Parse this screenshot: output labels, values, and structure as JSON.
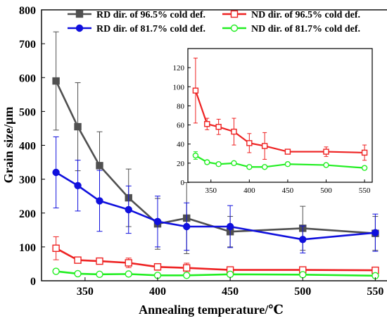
{
  "chart_data": [
    {
      "type": "line",
      "title": "",
      "xlabel": "Annealing temperature/℃",
      "ylabel": "Grain size/μm",
      "xlim": [
        320,
        560
      ],
      "ylim": [
        0,
        800
      ],
      "xticks": [
        350,
        400,
        450,
        500,
        550
      ],
      "yticks": [
        0,
        100,
        200,
        300,
        400,
        500,
        600,
        700,
        800
      ],
      "x": [
        330,
        345,
        360,
        380,
        400,
        420,
        450,
        500,
        550
      ],
      "legend_position": "top",
      "series": [
        {
          "name": "RD dir. of 96.5% cold def.",
          "color": "#505050",
          "marker": "square-filled",
          "values": [
            590,
            455,
            340,
            245,
            168,
            185,
            145,
            155,
            140
          ],
          "errors": [
            145,
            130,
            100,
            85,
            75,
            105,
            45,
            65,
            50
          ]
        },
        {
          "name": "ND dir. of 96.5% cold def.",
          "color": "#ee2222",
          "marker": "square-open",
          "values": [
            96,
            61,
            58,
            53,
            41,
            38,
            32,
            32,
            31
          ],
          "errors": [
            34,
            6,
            8,
            14,
            10,
            14,
            2,
            5,
            8
          ]
        },
        {
          "name": "RD dir. of 81.7% cold def.",
          "color": "#1010dd",
          "marker": "circle-filled",
          "values": [
            320,
            281,
            236,
            210,
            175,
            160,
            160,
            122,
            142
          ],
          "errors": [
            105,
            75,
            90,
            70,
            75,
            70,
            62,
            40,
            55
          ]
        },
        {
          "name": "ND dir. of 81.7% cold def.",
          "color": "#22ee22",
          "marker": "circle-open",
          "values": [
            28,
            21,
            19,
            20,
            16,
            16,
            19,
            18,
            15
          ],
          "errors": [
            4,
            2,
            2,
            2,
            2,
            2,
            2,
            2,
            2
          ]
        }
      ]
    },
    {
      "type": "line",
      "title": "",
      "xlim": [
        320,
        560
      ],
      "ylim": [
        0,
        140
      ],
      "xticks": [
        350,
        400,
        450,
        500,
        550
      ],
      "yticks": [
        0,
        20,
        40,
        60,
        80,
        100,
        120
      ],
      "x": [
        330,
        345,
        360,
        380,
        400,
        420,
        450,
        500,
        550
      ],
      "series": [
        {
          "name": "ND dir. of 96.5% cold def.",
          "color": "#ee2222",
          "marker": "square-open",
          "values": [
            96,
            61,
            58,
            53,
            41,
            38,
            32,
            32,
            31
          ],
          "errors": [
            34,
            6,
            8,
            14,
            10,
            14,
            2,
            5,
            8
          ]
        },
        {
          "name": "ND dir. of 81.7% cold def.",
          "color": "#22ee22",
          "marker": "circle-open",
          "values": [
            28,
            21,
            19,
            20,
            16,
            16,
            19,
            18,
            15
          ],
          "errors": [
            4,
            2,
            2,
            2,
            2,
            2,
            2,
            2,
            2
          ]
        }
      ]
    }
  ]
}
